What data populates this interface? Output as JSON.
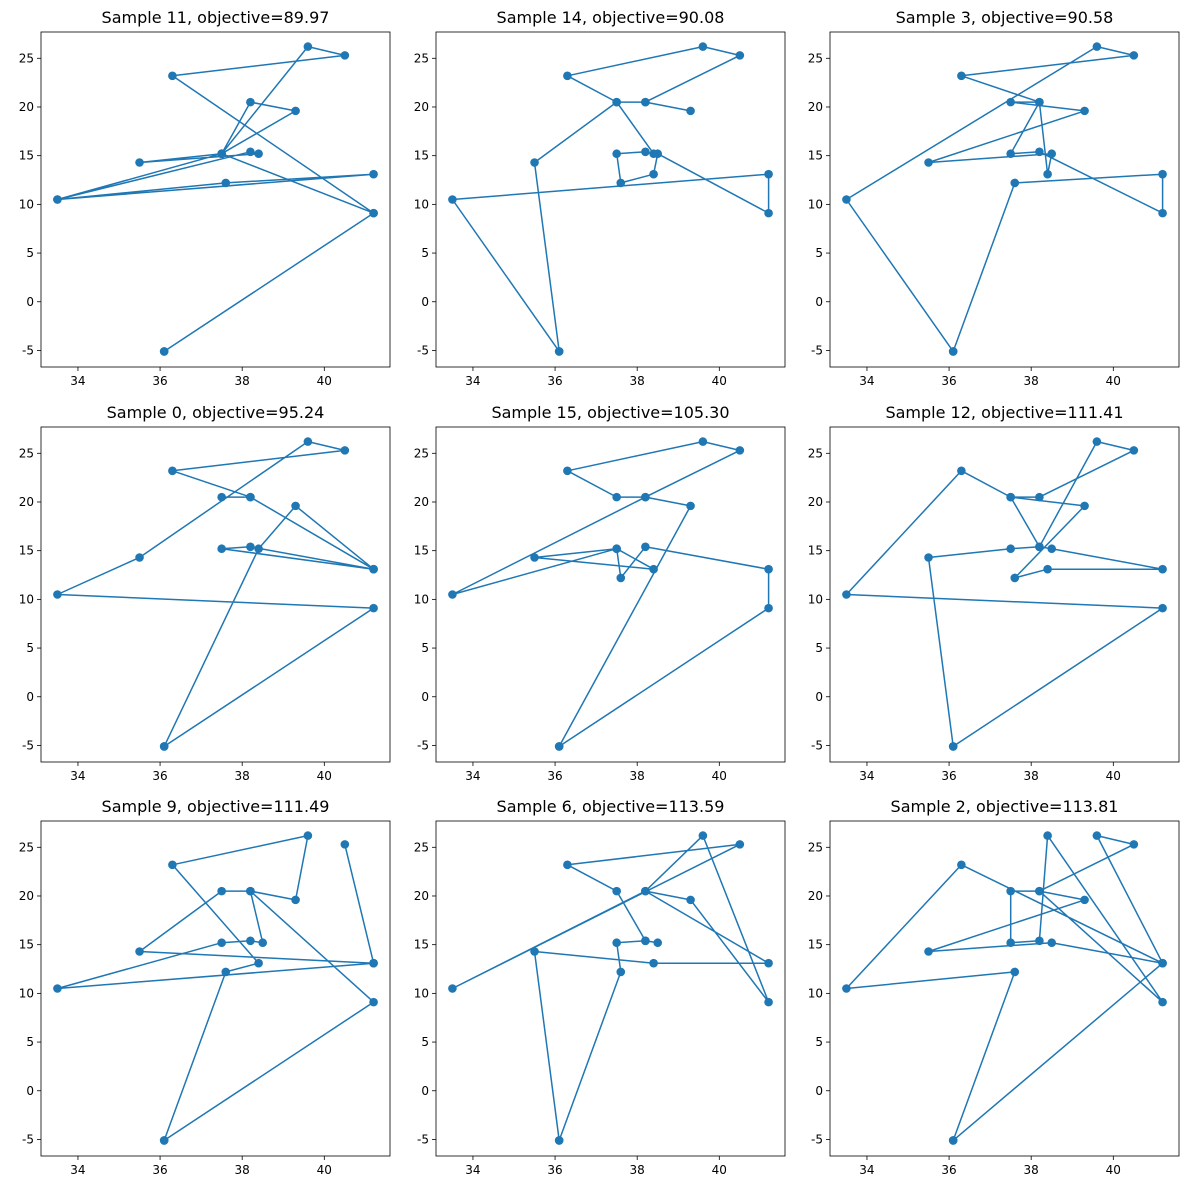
{
  "figure": {
    "background": "#ffffff",
    "series_color": "#1f77b4"
  },
  "chart_data": [
    {
      "type": "line",
      "title": "Sample 11, objective=89.97",
      "xlabel": "",
      "ylabel": "",
      "xlim": [
        33.1,
        41.6
      ],
      "ylim": [
        -6.7,
        27.7
      ],
      "xticks": [
        34,
        36,
        38,
        40
      ],
      "yticks": [
        -5,
        0,
        5,
        10,
        15,
        20,
        25
      ],
      "grid": false,
      "markers": true,
      "x": [
        36.1,
        41.2,
        36.3,
        40.5,
        39.6,
        37.5,
        38.2,
        39.3,
        37.5,
        35.5,
        38.4,
        38.2,
        33.5,
        41.2,
        37.6,
        33.5,
        37.5,
        41.2,
        36.1
      ],
      "y": [
        -5.1,
        9.1,
        23.2,
        25.3,
        26.2,
        15.2,
        20.5,
        19.6,
        15.2,
        14.3,
        15.2,
        15.4,
        10.5,
        13.1,
        12.2,
        10.5,
        15.2,
        9.1,
        -5.1
      ]
    },
    {
      "type": "line",
      "title": "Sample 14, objective=90.08",
      "xlabel": "",
      "ylabel": "",
      "xlim": [
        33.1,
        41.6
      ],
      "ylim": [
        -6.7,
        27.7
      ],
      "xticks": [
        34,
        36,
        38,
        40
      ],
      "yticks": [
        -5,
        0,
        5,
        10,
        15,
        20,
        25
      ],
      "grid": false,
      "markers": true,
      "x": [
        36.1,
        35.5,
        37.5,
        38.2,
        39.3,
        38.2,
        40.5,
        39.6,
        36.3,
        37.5,
        38.4,
        38.2,
        37.5,
        37.6,
        38.4,
        38.5,
        41.2,
        41.2,
        33.5,
        36.1
      ],
      "y": [
        -5.1,
        14.3,
        20.5,
        20.5,
        19.6,
        20.5,
        25.3,
        26.2,
        23.2,
        20.5,
        15.2,
        15.4,
        15.2,
        12.2,
        13.1,
        15.2,
        9.1,
        13.1,
        10.5,
        -5.1
      ]
    },
    {
      "type": "line",
      "title": "Sample 3, objective=90.58",
      "xlabel": "",
      "ylabel": "",
      "xlim": [
        33.1,
        41.6
      ],
      "ylim": [
        -6.7,
        27.7
      ],
      "xticks": [
        34,
        36,
        38,
        40
      ],
      "yticks": [
        -5,
        0,
        5,
        10,
        15,
        20,
        25
      ],
      "grid": false,
      "markers": true,
      "x": [
        36.1,
        37.6,
        41.2,
        41.2,
        38.2,
        37.5,
        38.2,
        38.4,
        38.5,
        35.5,
        39.3,
        37.5,
        38.2,
        36.3,
        40.5,
        39.6,
        33.5,
        36.1
      ],
      "y": [
        -5.1,
        12.2,
        13.1,
        9.1,
        15.4,
        15.2,
        20.5,
        13.1,
        15.2,
        14.3,
        19.6,
        20.5,
        20.5,
        23.2,
        25.3,
        26.2,
        10.5,
        -5.1
      ]
    },
    {
      "type": "line",
      "title": "Sample 0, objective=95.24",
      "xlabel": "",
      "ylabel": "",
      "xlim": [
        33.1,
        41.6
      ],
      "ylim": [
        -6.7,
        27.7
      ],
      "xticks": [
        34,
        36,
        38,
        40
      ],
      "yticks": [
        -5,
        0,
        5,
        10,
        15,
        20,
        25
      ],
      "grid": false,
      "markers": true,
      "x": [
        36.1,
        38.4,
        39.3,
        41.2,
        38.2,
        37.5,
        41.2,
        38.2,
        37.5,
        38.2,
        36.3,
        40.5,
        39.6,
        35.5,
        33.5,
        41.2,
        36.1
      ],
      "y": [
        -5.1,
        15.2,
        19.6,
        13.1,
        15.4,
        15.2,
        13.1,
        20.5,
        20.5,
        20.5,
        23.2,
        25.3,
        26.2,
        14.3,
        10.5,
        9.1,
        -5.1
      ]
    },
    {
      "type": "line",
      "title": "Sample 15, objective=105.30",
      "xlabel": "",
      "ylabel": "",
      "xlim": [
        33.1,
        41.6
      ],
      "ylim": [
        -6.7,
        27.7
      ],
      "xticks": [
        34,
        36,
        38,
        40
      ],
      "yticks": [
        -5,
        0,
        5,
        10,
        15,
        20,
        25
      ],
      "grid": false,
      "markers": true,
      "x": [
        36.1,
        39.3,
        38.2,
        37.5,
        36.3,
        39.6,
        40.5,
        38.2,
        33.5,
        37.5,
        38.4,
        35.5,
        37.5,
        37.6,
        38.2,
        41.2,
        41.2,
        36.1
      ],
      "y": [
        -5.1,
        19.6,
        20.5,
        20.5,
        23.2,
        26.2,
        25.3,
        20.5,
        10.5,
        15.2,
        13.1,
        14.3,
        15.2,
        12.2,
        15.4,
        13.1,
        9.1,
        -5.1
      ]
    },
    {
      "type": "line",
      "title": "Sample 12, objective=111.41",
      "xlabel": "",
      "ylabel": "",
      "xlim": [
        33.1,
        41.6
      ],
      "ylim": [
        -6.7,
        27.7
      ],
      "xticks": [
        34,
        36,
        38,
        40
      ],
      "yticks": [
        -5,
        0,
        5,
        10,
        15,
        20,
        25
      ],
      "grid": false,
      "markers": true,
      "x": [
        36.1,
        35.5,
        37.5,
        38.2,
        39.6,
        40.5,
        38.2,
        37.5,
        38.2,
        38.5,
        41.2,
        38.4,
        37.6,
        39.3,
        37.5,
        36.3,
        33.5,
        41.2,
        36.1
      ],
      "y": [
        -5.1,
        14.3,
        15.2,
        15.4,
        26.2,
        25.3,
        20.5,
        20.5,
        15.4,
        15.2,
        13.1,
        13.1,
        12.2,
        19.6,
        20.5,
        23.2,
        10.5,
        9.1,
        -5.1
      ]
    },
    {
      "type": "line",
      "title": "Sample 9, objective=111.49",
      "xlabel": "",
      "ylabel": "",
      "xlim": [
        33.1,
        41.6
      ],
      "ylim": [
        -6.7,
        27.7
      ],
      "xticks": [
        34,
        36,
        38,
        40
      ],
      "yticks": [
        -5,
        0,
        5,
        10,
        15,
        20,
        25
      ],
      "grid": false,
      "markers": true,
      "x": [
        36.1,
        37.6,
        38.4,
        36.3,
        39.6,
        39.3,
        38.2,
        38.5,
        38.2,
        37.5,
        33.5,
        41.2,
        40.5,
        41.2,
        35.5,
        37.5,
        38.2,
        41.2,
        36.1
      ],
      "y": [
        -5.1,
        12.2,
        13.1,
        23.2,
        26.2,
        19.6,
        20.5,
        15.2,
        15.4,
        15.2,
        10.5,
        13.1,
        25.3,
        13.1,
        14.3,
        20.5,
        20.5,
        9.1,
        -5.1
      ]
    },
    {
      "type": "line",
      "title": "Sample 6, objective=113.59",
      "xlabel": "",
      "ylabel": "",
      "xlim": [
        33.1,
        41.6
      ],
      "ylim": [
        -6.7,
        27.7
      ],
      "xticks": [
        34,
        36,
        38,
        40
      ],
      "yticks": [
        -5,
        0,
        5,
        10,
        15,
        20,
        25
      ],
      "grid": false,
      "markers": true,
      "x": [
        36.1,
        37.6,
        37.5,
        38.2,
        38.5,
        38.2,
        37.5,
        36.3,
        40.5,
        33.5,
        38.2,
        39.6,
        41.2,
        39.3,
        38.2,
        41.2,
        38.4,
        35.5,
        36.1
      ],
      "y": [
        -5.1,
        12.2,
        15.2,
        15.4,
        15.2,
        15.4,
        20.5,
        23.2,
        25.3,
        10.5,
        20.5,
        26.2,
        9.1,
        19.6,
        20.5,
        13.1,
        13.1,
        14.3,
        -5.1
      ]
    },
    {
      "type": "line",
      "title": "Sample 2, objective=113.81",
      "xlabel": "",
      "ylabel": "",
      "xlim": [
        33.1,
        41.6
      ],
      "ylim": [
        -6.7,
        27.7
      ],
      "xticks": [
        34,
        36,
        38,
        40
      ],
      "yticks": [
        -5,
        0,
        5,
        10,
        15,
        20,
        25
      ],
      "grid": false,
      "markers": true,
      "x": [
        36.1,
        41.2,
        39.6,
        40.5,
        38.2,
        37.5,
        37.5,
        38.2,
        38.4,
        41.2,
        38.2,
        39.3,
        35.5,
        38.5,
        41.2,
        36.3,
        33.5,
        37.6,
        36.1
      ],
      "y": [
        -5.1,
        13.1,
        26.2,
        25.3,
        20.5,
        20.5,
        15.2,
        15.4,
        26.2,
        9.1,
        20.5,
        19.6,
        14.3,
        15.2,
        13.1,
        23.2,
        10.5,
        12.2,
        -5.1
      ]
    }
  ]
}
